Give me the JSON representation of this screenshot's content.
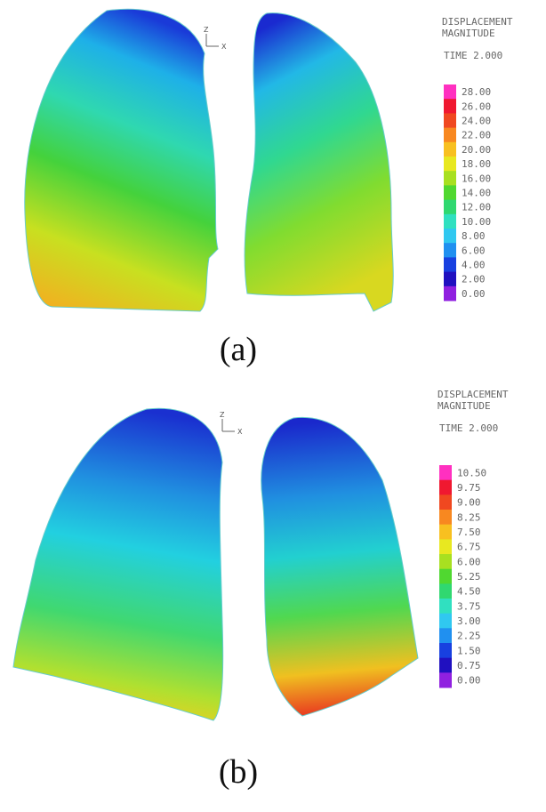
{
  "panels": [
    {
      "axes": {
        "z": "Z",
        "x": "X"
      },
      "legend": {
        "title": "DISPLACEMENT",
        "subtitle": "MAGNITUDE",
        "time": "TIME 2.000",
        "ticks": [
          "28.00",
          "26.00",
          "24.00",
          "22.00",
          "20.00",
          "18.00",
          "16.00",
          "14.00",
          "12.00",
          "10.00",
          "8.00",
          "6.00",
          "4.00",
          "2.00",
          "0.00"
        ]
      },
      "caption": "(a)"
    },
    {
      "axes": {
        "z": "Z",
        "x": "X"
      },
      "legend": {
        "title": "DISPLACEMENT",
        "subtitle": "MAGNITUDE",
        "time": "TIME 2.000",
        "ticks": [
          "10.50",
          "9.75",
          "9.00",
          "8.25",
          "7.50",
          "6.75",
          "6.00",
          "5.25",
          "4.50",
          "3.75",
          "3.00",
          "2.25",
          "1.50",
          "0.75",
          "0.00"
        ]
      },
      "caption": "(b)"
    }
  ]
}
